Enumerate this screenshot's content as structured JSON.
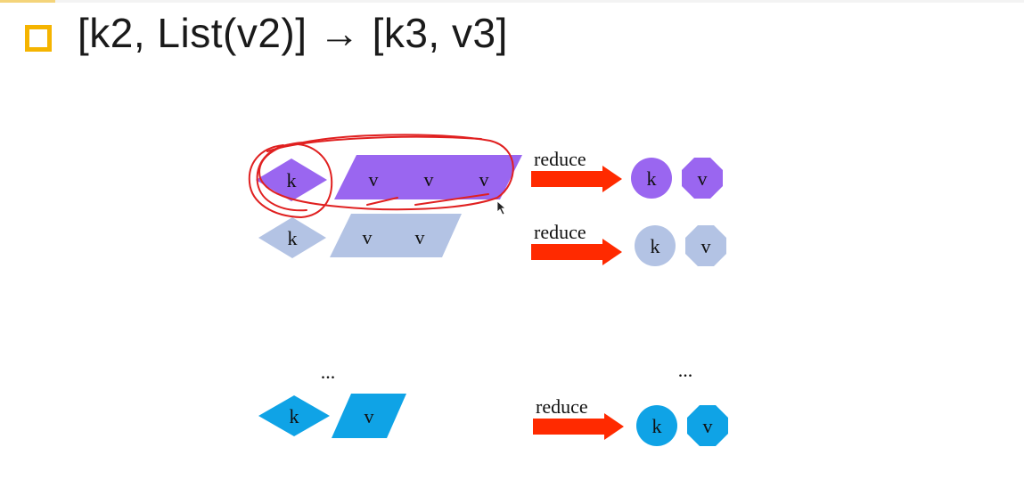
{
  "slide": {
    "title": "[k2, List(v2)] → [k3, v3]"
  },
  "diagram": {
    "colors": {
      "purple": "#9a66f0",
      "lavender": "#b3c3e4",
      "blue": "#0fa3e6",
      "arrow": "#ff2a00",
      "annotation": "#e02020"
    },
    "rows": [
      {
        "key_label": "k",
        "values": [
          "v",
          "v",
          "v"
        ],
        "arrow_label": "reduce",
        "out_key_label": "k",
        "out_value_label": "v"
      },
      {
        "key_label": "k",
        "values": [
          "v",
          "v"
        ],
        "arrow_label": "reduce",
        "out_key_label": "k",
        "out_value_label": "v"
      },
      {
        "key_label": "k",
        "values": [
          "v"
        ],
        "arrow_label": "reduce",
        "out_key_label": "k",
        "out_value_label": "v"
      }
    ],
    "ellipsis_left": "...",
    "ellipsis_right": "..."
  }
}
